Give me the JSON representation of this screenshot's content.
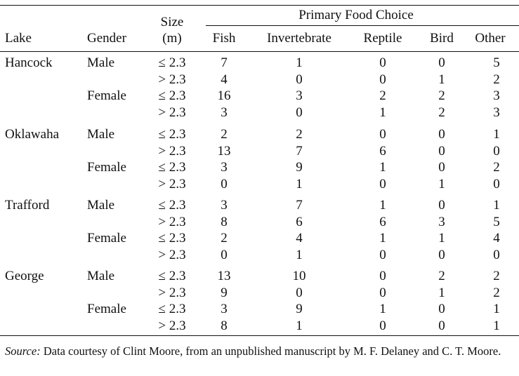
{
  "header": {
    "group_label": "Primary Food Choice",
    "size_label_1": "Size",
    "size_label_2": "(m)",
    "columns": [
      "Lake",
      "Gender",
      "Fish",
      "Invertebrate",
      "Reptile",
      "Bird",
      "Other"
    ]
  },
  "lakes": [
    {
      "name": "Hancock",
      "groups": [
        {
          "gender": "Male",
          "rows": [
            {
              "size": "≤ 2.3",
              "fish": "7",
              "invertebrate": "1",
              "reptile": "0",
              "bird": "0",
              "other": "5"
            },
            {
              "size": "> 2.3",
              "fish": "4",
              "invertebrate": "0",
              "reptile": "0",
              "bird": "1",
              "other": "2"
            }
          ]
        },
        {
          "gender": "Female",
          "rows": [
            {
              "size": "≤ 2.3",
              "fish": "16",
              "invertebrate": "3",
              "reptile": "2",
              "bird": "2",
              "other": "3"
            },
            {
              "size": "> 2.3",
              "fish": "3",
              "invertebrate": "0",
              "reptile": "1",
              "bird": "2",
              "other": "3"
            }
          ]
        }
      ]
    },
    {
      "name": "Oklawaha",
      "groups": [
        {
          "gender": "Male",
          "rows": [
            {
              "size": "≤ 2.3",
              "fish": "2",
              "invertebrate": "2",
              "reptile": "0",
              "bird": "0",
              "other": "1"
            },
            {
              "size": "> 2.3",
              "fish": "13",
              "invertebrate": "7",
              "reptile": "6",
              "bird": "0",
              "other": "0"
            }
          ]
        },
        {
          "gender": "Female",
          "rows": [
            {
              "size": "≤ 2.3",
              "fish": "3",
              "invertebrate": "9",
              "reptile": "1",
              "bird": "0",
              "other": "2"
            },
            {
              "size": "> 2.3",
              "fish": "0",
              "invertebrate": "1",
              "reptile": "0",
              "bird": "1",
              "other": "0"
            }
          ]
        }
      ]
    },
    {
      "name": "Trafford",
      "groups": [
        {
          "gender": "Male",
          "rows": [
            {
              "size": "≤ 2.3",
              "fish": "3",
              "invertebrate": "7",
              "reptile": "1",
              "bird": "0",
              "other": "1"
            },
            {
              "size": "> 2.3",
              "fish": "8",
              "invertebrate": "6",
              "reptile": "6",
              "bird": "3",
              "other": "5"
            }
          ]
        },
        {
          "gender": "Female",
          "rows": [
            {
              "size": "≤ 2.3",
              "fish": "2",
              "invertebrate": "4",
              "reptile": "1",
              "bird": "1",
              "other": "4"
            },
            {
              "size": "> 2.3",
              "fish": "0",
              "invertebrate": "1",
              "reptile": "0",
              "bird": "0",
              "other": "0"
            }
          ]
        }
      ]
    },
    {
      "name": "George",
      "groups": [
        {
          "gender": "Male",
          "rows": [
            {
              "size": "≤ 2.3",
              "fish": "13",
              "invertebrate": "10",
              "reptile": "0",
              "bird": "2",
              "other": "2"
            },
            {
              "size": "> 2.3",
              "fish": "9",
              "invertebrate": "0",
              "reptile": "0",
              "bird": "1",
              "other": "2"
            }
          ]
        },
        {
          "gender": "Female",
          "rows": [
            {
              "size": "≤ 2.3",
              "fish": "3",
              "invertebrate": "9",
              "reptile": "1",
              "bird": "0",
              "other": "1"
            },
            {
              "size": "> 2.3",
              "fish": "8",
              "invertebrate": "1",
              "reptile": "0",
              "bird": "0",
              "other": "1"
            }
          ]
        }
      ]
    }
  ],
  "source": {
    "label": "Source:",
    "text": " Data courtesy of Clint Moore, from an unpublished manuscript by M. F. Delaney and C. T. Moore."
  }
}
